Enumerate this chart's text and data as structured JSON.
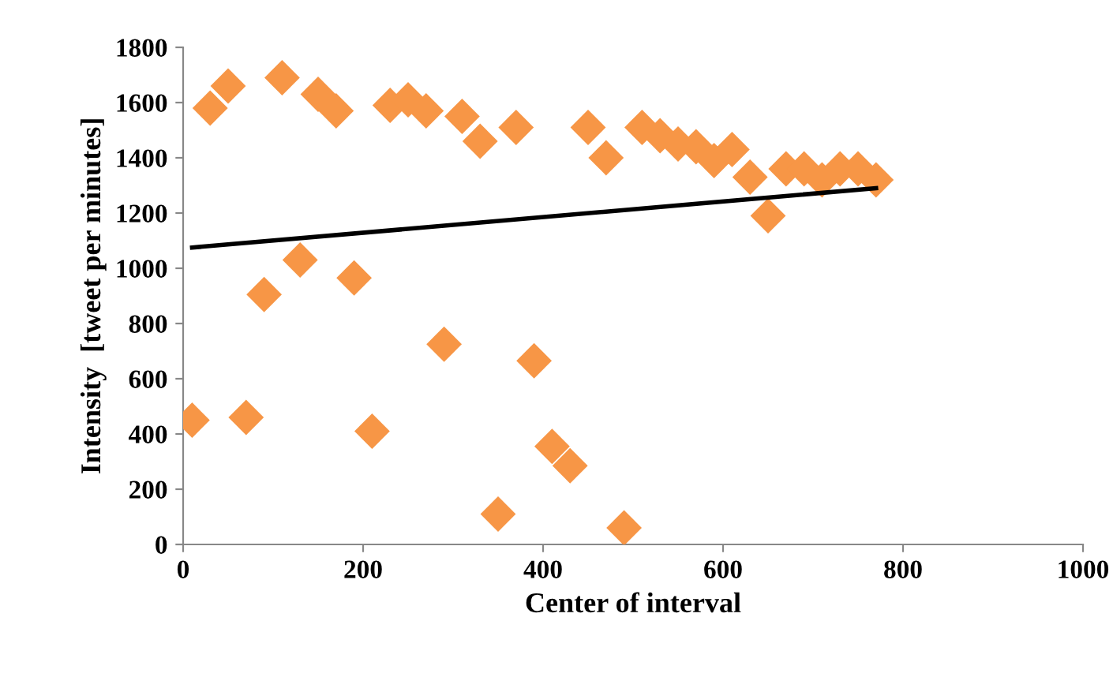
{
  "chart_data": {
    "type": "scatter",
    "xlabel": "Center of interval",
    "ylabel": "Intensity  [tweet per minutes]",
    "xlim": [
      0,
      1000
    ],
    "xticks": [
      0,
      200,
      400,
      600,
      800,
      1000
    ],
    "ylim": [
      0,
      1800
    ],
    "yticks": [
      0,
      200,
      400,
      600,
      800,
      1000,
      1200,
      1400,
      1600,
      1800
    ],
    "grid": false,
    "legend": false,
    "series": [
      {
        "marker": "diamond",
        "color": "#f79646",
        "x": [
          10,
          30,
          50,
          70,
          90,
          110,
          130,
          150,
          170,
          190,
          210,
          230,
          250,
          270,
          290,
          310,
          330,
          350,
          370,
          390,
          410,
          430,
          450,
          470,
          490,
          510,
          530,
          550,
          570,
          590,
          610,
          630,
          650,
          670,
          690,
          710,
          730,
          750,
          770
        ],
        "values": [
          450,
          1580,
          1660,
          460,
          905,
          1690,
          1030,
          1630,
          1570,
          965,
          410,
          1590,
          1610,
          1570,
          725,
          1550,
          1460,
          110,
          1510,
          665,
          355,
          285,
          1510,
          1400,
          60,
          1510,
          1480,
          1450,
          1440,
          1390,
          1430,
          1330,
          1190,
          1360,
          1360,
          1320,
          1360,
          1360,
          1320
        ]
      },
      {
        "type": "line",
        "color": "#000000",
        "x": [
          10,
          770
        ],
        "values": [
          1075,
          1290
        ]
      }
    ]
  }
}
